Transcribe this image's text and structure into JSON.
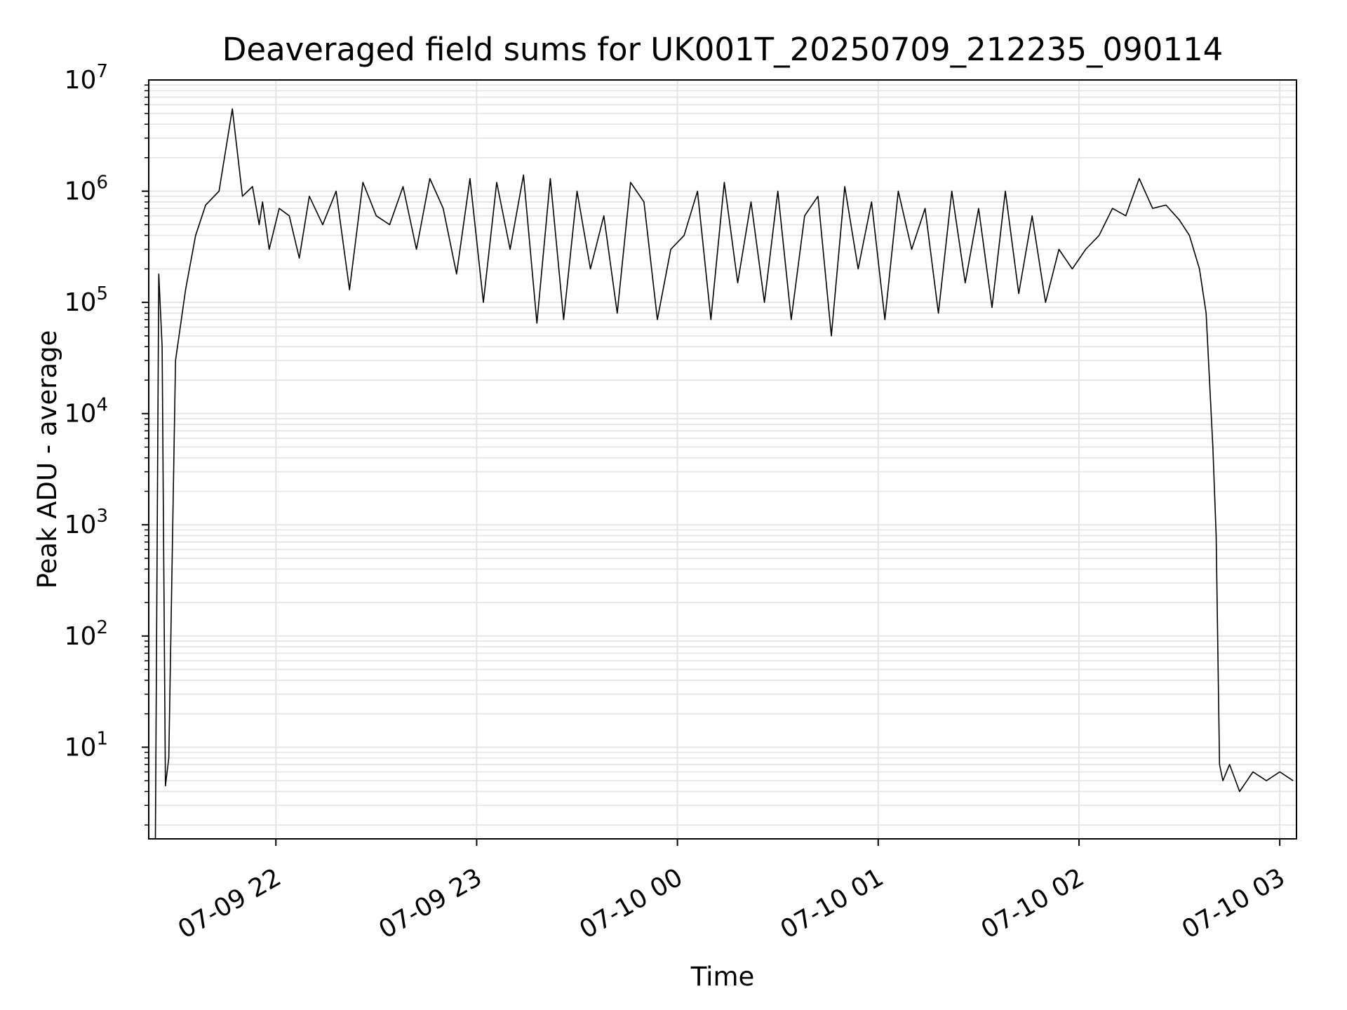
{
  "chart_data": {
    "type": "line",
    "title": "Deaveraged field sums for UK001T_20250709_212235_090114",
    "xlabel": "Time",
    "ylabel": "Peak ADU - average",
    "yscale": "log",
    "ylim": [
      1.5,
      10000000
    ],
    "xlim": [
      "2025-07-09 21:22",
      "2025-07-10 03:05"
    ],
    "grid": true,
    "line_color": "#000000",
    "grid_color": "#e5e5e5",
    "x_ticks": [
      "07-09 22",
      "07-09 23",
      "07-10 00",
      "07-10 01",
      "07-10 02",
      "07-10 03"
    ],
    "y_ticks": [
      {
        "base": "10",
        "exp": "1"
      },
      {
        "base": "10",
        "exp": "2"
      },
      {
        "base": "10",
        "exp": "3"
      },
      {
        "base": "10",
        "exp": "4"
      },
      {
        "base": "10",
        "exp": "5"
      },
      {
        "base": "10",
        "exp": "6"
      },
      {
        "base": "10",
        "exp": "7"
      }
    ],
    "series": [
      {
        "x": [
          "2025-07-09 21:24",
          "2025-07-09 21:25",
          "2025-07-09 21:26",
          "2025-07-09 21:27",
          "2025-07-09 21:28",
          "2025-07-09 21:30",
          "2025-07-09 21:33",
          "2025-07-09 21:36",
          "2025-07-09 21:39",
          "2025-07-09 21:43",
          "2025-07-09 21:47",
          "2025-07-09 21:50",
          "2025-07-09 21:53",
          "2025-07-09 21:55",
          "2025-07-09 21:56",
          "2025-07-09 21:58",
          "2025-07-09 22:01",
          "2025-07-09 22:04",
          "2025-07-09 22:07",
          "2025-07-09 22:10",
          "2025-07-09 22:14",
          "2025-07-09 22:18",
          "2025-07-09 22:22",
          "2025-07-09 22:26",
          "2025-07-09 22:30",
          "2025-07-09 22:34",
          "2025-07-09 22:38",
          "2025-07-09 22:42",
          "2025-07-09 22:46",
          "2025-07-09 22:50",
          "2025-07-09 22:54",
          "2025-07-09 22:58",
          "2025-07-09 23:02",
          "2025-07-09 23:06",
          "2025-07-09 23:10",
          "2025-07-09 23:14",
          "2025-07-09 23:18",
          "2025-07-09 23:22",
          "2025-07-09 23:26",
          "2025-07-09 23:30",
          "2025-07-09 23:34",
          "2025-07-09 23:38",
          "2025-07-09 23:42",
          "2025-07-09 23:46",
          "2025-07-09 23:50",
          "2025-07-09 23:54",
          "2025-07-09 23:58",
          "2025-07-10 00:02",
          "2025-07-10 00:06",
          "2025-07-10 00:10",
          "2025-07-10 00:14",
          "2025-07-10 00:18",
          "2025-07-10 00:22",
          "2025-07-10 00:26",
          "2025-07-10 00:30",
          "2025-07-10 00:34",
          "2025-07-10 00:38",
          "2025-07-10 00:42",
          "2025-07-10 00:46",
          "2025-07-10 00:50",
          "2025-07-10 00:54",
          "2025-07-10 00:58",
          "2025-07-10 01:02",
          "2025-07-10 01:06",
          "2025-07-10 01:10",
          "2025-07-10 01:14",
          "2025-07-10 01:18",
          "2025-07-10 01:22",
          "2025-07-10 01:26",
          "2025-07-10 01:30",
          "2025-07-10 01:34",
          "2025-07-10 01:38",
          "2025-07-10 01:42",
          "2025-07-10 01:46",
          "2025-07-10 01:50",
          "2025-07-10 01:54",
          "2025-07-10 01:58",
          "2025-07-10 02:02",
          "2025-07-10 02:06",
          "2025-07-10 02:10",
          "2025-07-10 02:14",
          "2025-07-10 02:18",
          "2025-07-10 02:22",
          "2025-07-10 02:26",
          "2025-07-10 02:30",
          "2025-07-10 02:33",
          "2025-07-10 02:36",
          "2025-07-10 02:38",
          "2025-07-10 02:40",
          "2025-07-10 02:41",
          "2025-07-10 02:42",
          "2025-07-10 02:43",
          "2025-07-10 02:45",
          "2025-07-10 02:48",
          "2025-07-10 02:52",
          "2025-07-10 02:56",
          "2025-07-10 03:00",
          "2025-07-10 03:04"
        ],
        "y": [
          1.5,
          180000,
          40000,
          4.5,
          8,
          30000,
          130000,
          400000,
          750000,
          1000000,
          5500000,
          900000,
          1100000,
          500000,
          800000,
          300000,
          700000,
          600000,
          250000,
          900000,
          500000,
          1000000,
          130000,
          1200000,
          600000,
          500000,
          1100000,
          300000,
          1300000,
          700000,
          180000,
          1300000,
          100000,
          1200000,
          300000,
          1400000,
          65000,
          1300000,
          70000,
          1000000,
          200000,
          600000,
          80000,
          1200000,
          800000,
          70000,
          300000,
          400000,
          1000000,
          70000,
          1200000,
          150000,
          800000,
          100000,
          1000000,
          70000,
          600000,
          900000,
          50000,
          1100000,
          200000,
          800000,
          70000,
          1000000,
          300000,
          700000,
          80000,
          1000000,
          150000,
          700000,
          90000,
          1000000,
          120000,
          600000,
          100000,
          300000,
          200000,
          300000,
          400000,
          700000,
          600000,
          1300000,
          700000,
          750000,
          550000,
          400000,
          200000,
          80000,
          5000,
          800,
          7,
          5,
          7,
          4,
          6,
          5,
          6,
          5
        ]
      }
    ]
  }
}
